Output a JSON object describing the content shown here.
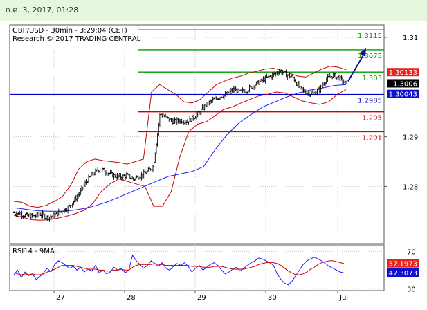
{
  "header": {
    "datetime": "ก.ค. 3, 2017, 01:28"
  },
  "chart_data": [
    {
      "type": "line",
      "panel": "price",
      "title": "GBP/USD - 30min - 3:29:04 (CET)",
      "subtitle": "Research © 2017 TRADING CENTRAL",
      "x_labels": [
        "27",
        "28",
        "29",
        "30",
        "Jul"
      ],
      "ylim": [
        1.2685,
        1.3125
      ],
      "y_ticks": [
        1.28,
        1.29,
        1.31
      ],
      "y_tick_labels": [
        "1.28",
        "1.29",
        "1.31"
      ],
      "levels": [
        {
          "value": 1.3115,
          "label": "1.3115",
          "color": "#009900"
        },
        {
          "value": 1.3075,
          "label": "1.3075",
          "color": "#009900"
        },
        {
          "value": 1.303,
          "label": "1.303",
          "color": "#009900"
        },
        {
          "value": 1.2985,
          "label": "1.2985",
          "color": "#0000cc"
        },
        {
          "value": 1.295,
          "label": "1.295",
          "color": "#cc0000"
        },
        {
          "value": 1.291,
          "label": "1.291",
          "color": "#cc0000"
        }
      ],
      "price_tags": [
        {
          "value": 1.30133,
          "label": "1.30133",
          "color": "#e8231e"
        },
        {
          "value": 1.3006,
          "label": "1.3006",
          "color": "#000000"
        },
        {
          "value": 1.30043,
          "label": "1.30043",
          "color": "#1010d0"
        }
      ],
      "arrow": {
        "from": 1.3006,
        "to": 1.3075
      },
      "price_path": [
        1.2747,
        1.2745,
        1.2741,
        1.274,
        1.2744,
        1.2738,
        1.2742,
        1.2749,
        1.2756,
        1.277,
        1.2789,
        1.2812,
        1.2826,
        1.2836,
        1.2829,
        1.2822,
        1.2819,
        1.2822,
        1.2815,
        1.2821,
        1.2829,
        1.2841,
        1.2946,
        1.2938,
        1.293,
        1.2933,
        1.293,
        1.2938,
        1.295,
        1.2965,
        1.2974,
        1.2981,
        1.2984,
        1.2995,
        1.299,
        1.2993,
        1.3003,
        1.301,
        1.3018,
        1.3024,
        1.3033,
        1.3025,
        1.302,
        1.2998,
        1.2989,
        1.2986,
        1.2995,
        1.3015,
        1.3024,
        1.3018,
        1.3006
      ],
      "bb_upper": [
        1.277,
        1.2768,
        1.276,
        1.2758,
        1.2762,
        1.277,
        1.278,
        1.2802,
        1.2835,
        1.285,
        1.2855,
        1.2852,
        1.285,
        1.2848,
        1.2845,
        1.285,
        1.2855,
        1.299,
        1.3005,
        1.2995,
        1.2985,
        1.297,
        1.2968,
        1.2975,
        1.299,
        1.3005,
        1.3012,
        1.3018,
        1.3022,
        1.3028,
        1.3032,
        1.3036,
        1.3038,
        1.3034,
        1.3028,
        1.3022,
        1.302,
        1.3028,
        1.3036,
        1.3042,
        1.304,
        1.3035
      ],
      "bb_lower": [
        1.2742,
        1.2738,
        1.2733,
        1.2732,
        1.2733,
        1.2736,
        1.274,
        1.2745,
        1.2752,
        1.2765,
        1.279,
        1.2805,
        1.2815,
        1.281,
        1.2805,
        1.28,
        1.276,
        1.276,
        1.279,
        1.286,
        1.291,
        1.2925,
        1.293,
        1.2942,
        1.2955,
        1.296,
        1.2968,
        1.2975,
        1.2982,
        1.2985,
        1.299,
        1.2988,
        1.298,
        1.2972,
        1.2968,
        1.2965,
        1.297,
        1.2985,
        1.2995
      ],
      "ma_line": [
        1.2757,
        1.2754,
        1.2751,
        1.275,
        1.275,
        1.2752,
        1.2756,
        1.2762,
        1.277,
        1.278,
        1.279,
        1.28,
        1.281,
        1.282,
        1.2825,
        1.283,
        1.284,
        1.2875,
        1.2905,
        1.2928,
        1.2945,
        1.296,
        1.297,
        1.298,
        1.2988,
        1.2994,
        1.2998,
        1.3003,
        1.3005
      ]
    },
    {
      "type": "line",
      "panel": "rsi",
      "title": "RSI14 - 9MA",
      "ylim": [
        28,
        77
      ],
      "y_ticks": [
        70,
        30
      ],
      "y_tick_labels": [
        "70",
        "30"
      ],
      "price_tags": [
        {
          "value": 57.1973,
          "label": "57.1973",
          "color": "#e8231e"
        },
        {
          "value": 47.3073,
          "label": "47.3073",
          "color": "#1010d0"
        }
      ],
      "series": [
        {
          "color": "#1a1aff",
          "values": [
            45,
            50,
            42,
            48,
            44,
            46,
            40,
            43,
            47,
            52,
            48,
            56,
            60,
            58,
            55,
            52,
            54,
            50,
            53,
            48,
            51,
            49,
            55,
            47,
            50,
            46,
            48,
            53,
            50,
            52,
            47,
            50,
            66,
            60,
            56,
            52,
            55,
            60,
            57,
            54,
            58,
            52,
            50,
            54,
            57,
            55,
            58,
            54,
            48,
            52,
            55,
            50,
            53,
            56,
            58,
            55,
            50,
            46,
            48,
            51,
            53,
            49,
            52,
            55,
            58,
            60,
            63,
            62,
            60,
            58,
            55,
            46,
            40,
            36,
            34,
            38,
            44,
            50,
            56,
            60,
            62,
            64,
            62,
            60,
            57,
            54,
            52,
            50,
            48,
            47
          ]
        },
        {
          "color": "#cc0000",
          "values": [
            47,
            46,
            45,
            46,
            45,
            46,
            45,
            45,
            46,
            48,
            49,
            51,
            53,
            55,
            55,
            55,
            55,
            54,
            53,
            52,
            51,
            51,
            51,
            50,
            50,
            49,
            49,
            50,
            50,
            51,
            50,
            50,
            53,
            55,
            56,
            56,
            56,
            56,
            57,
            56,
            56,
            55,
            55,
            55,
            55,
            55,
            55,
            55,
            54,
            54,
            54,
            53,
            53,
            53,
            54,
            54,
            54,
            53,
            52,
            51,
            51,
            51,
            51,
            52,
            53,
            54,
            56,
            57,
            58,
            58,
            58,
            57,
            55,
            52,
            49,
            47,
            45,
            45,
            46,
            48,
            51,
            53,
            56,
            58,
            59,
            60,
            60,
            59,
            58,
            57
          ]
        }
      ]
    }
  ]
}
